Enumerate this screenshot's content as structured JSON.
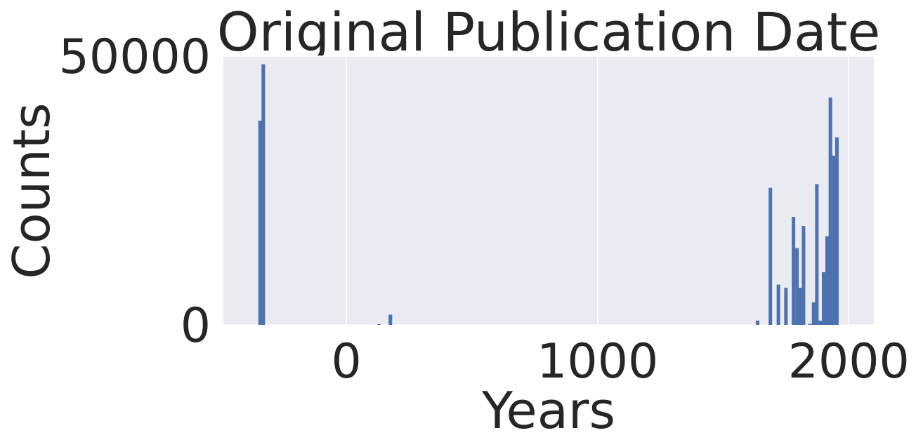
{
  "chart_data": {
    "type": "bar",
    "title": "Original Publication Date",
    "xlabel": "Years",
    "ylabel": "Counts",
    "xlim": [
      -490,
      2100
    ],
    "ylim": [
      0,
      50000
    ],
    "xticks": [
      0,
      1000,
      2000
    ],
    "yticks": [
      0,
      50000
    ],
    "grid": true,
    "colors": {
      "bar": "#4c72b0",
      "plot_bg": "#eaeaf2",
      "grid": "#ffffff",
      "text": "#262626"
    },
    "bar_width": 14,
    "bars": [
      {
        "x": -344,
        "value": 38000
      },
      {
        "x": -331,
        "value": 48500
      },
      {
        "x": 130,
        "value": 150
      },
      {
        "x": 175,
        "value": 1900
      },
      {
        "x": 1637,
        "value": 800
      },
      {
        "x": 1688,
        "value": 25500
      },
      {
        "x": 1720,
        "value": 7500
      },
      {
        "x": 1750,
        "value": 6900
      },
      {
        "x": 1780,
        "value": 20100
      },
      {
        "x": 1794,
        "value": 14300
      },
      {
        "x": 1807,
        "value": 6900
      },
      {
        "x": 1820,
        "value": 18400
      },
      {
        "x": 1845,
        "value": 200
      },
      {
        "x": 1860,
        "value": 4200
      },
      {
        "x": 1873,
        "value": 26200
      },
      {
        "x": 1887,
        "value": 800
      },
      {
        "x": 1900,
        "value": 9800
      },
      {
        "x": 1914,
        "value": 16500
      },
      {
        "x": 1927,
        "value": 42300
      },
      {
        "x": 1940,
        "value": 31500
      },
      {
        "x": 1953,
        "value": 34900
      }
    ]
  }
}
